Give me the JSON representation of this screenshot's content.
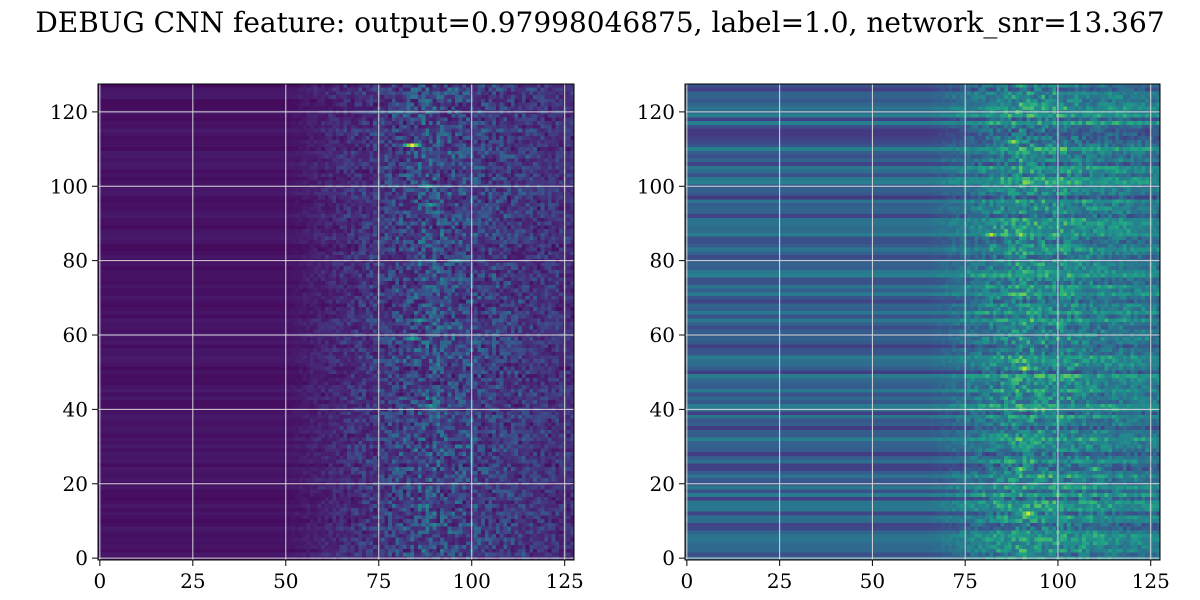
{
  "title": "DEBUG CNN feature: output=0.97998046875, label=1.0, network_snr=13.367",
  "chart_data": [
    {
      "type": "heatmap",
      "colormap": "viridis",
      "shape": [
        128,
        128
      ],
      "xlim": [
        -0.5,
        127.5
      ],
      "ylim": [
        127.5,
        -0.5
      ],
      "xticks": [
        0,
        25,
        50,
        75,
        100,
        125
      ],
      "yticks": [
        0,
        20,
        40,
        60,
        80,
        100,
        120
      ],
      "xticklabels": [
        "0",
        "25",
        "50",
        "75",
        "100",
        "125"
      ],
      "yticklabels": [
        "0",
        "20",
        "40",
        "60",
        "80",
        "100",
        "120"
      ],
      "grid": true,
      "background_level": 0.05,
      "signal_onset_col": 50,
      "signal_peak_col": 88,
      "signal_amplitude": 0.35,
      "hotspots": [
        {
          "row": 16,
          "col": 84,
          "value": 1.0
        },
        {
          "row": 27,
          "col": 88,
          "value": 0.6
        },
        {
          "row": 32,
          "col": 89,
          "value": 0.55
        },
        {
          "row": 47,
          "col": 96,
          "value": 0.5
        },
        {
          "row": 63,
          "col": 86,
          "value": 0.55
        },
        {
          "row": 68,
          "col": 84,
          "value": 0.6
        },
        {
          "row": 86,
          "col": 89,
          "value": 0.55
        },
        {
          "row": 118,
          "col": 90,
          "value": 0.45
        }
      ]
    },
    {
      "type": "heatmap",
      "colormap": "viridis",
      "shape": [
        128,
        128
      ],
      "xlim": [
        -0.5,
        127.5
      ],
      "ylim": [
        127.5,
        -0.5
      ],
      "xticks": [
        0,
        25,
        50,
        75,
        100,
        125
      ],
      "yticks": [
        0,
        20,
        40,
        60,
        80,
        100,
        120
      ],
      "xticklabels": [
        "0",
        "25",
        "50",
        "75",
        "100",
        "125"
      ],
      "yticklabels": [
        "0",
        "20",
        "40",
        "60",
        "80",
        "100",
        "120"
      ],
      "grid": true,
      "background_level": 0.3,
      "signal_onset_col": 65,
      "signal_peak_col": 90,
      "signal_amplitude": 0.35,
      "hotspots": [
        {
          "row": 15,
          "col": 88,
          "value": 0.85
        },
        {
          "row": 40,
          "col": 82,
          "value": 0.9
        },
        {
          "row": 40,
          "col": 90,
          "value": 0.85
        },
        {
          "row": 76,
          "col": 91,
          "value": 0.9
        },
        {
          "row": 103,
          "col": 90,
          "value": 0.8
        },
        {
          "row": 103,
          "col": 110,
          "value": 0.7
        },
        {
          "row": 115,
          "col": 92,
          "value": 0.95
        }
      ]
    }
  ]
}
